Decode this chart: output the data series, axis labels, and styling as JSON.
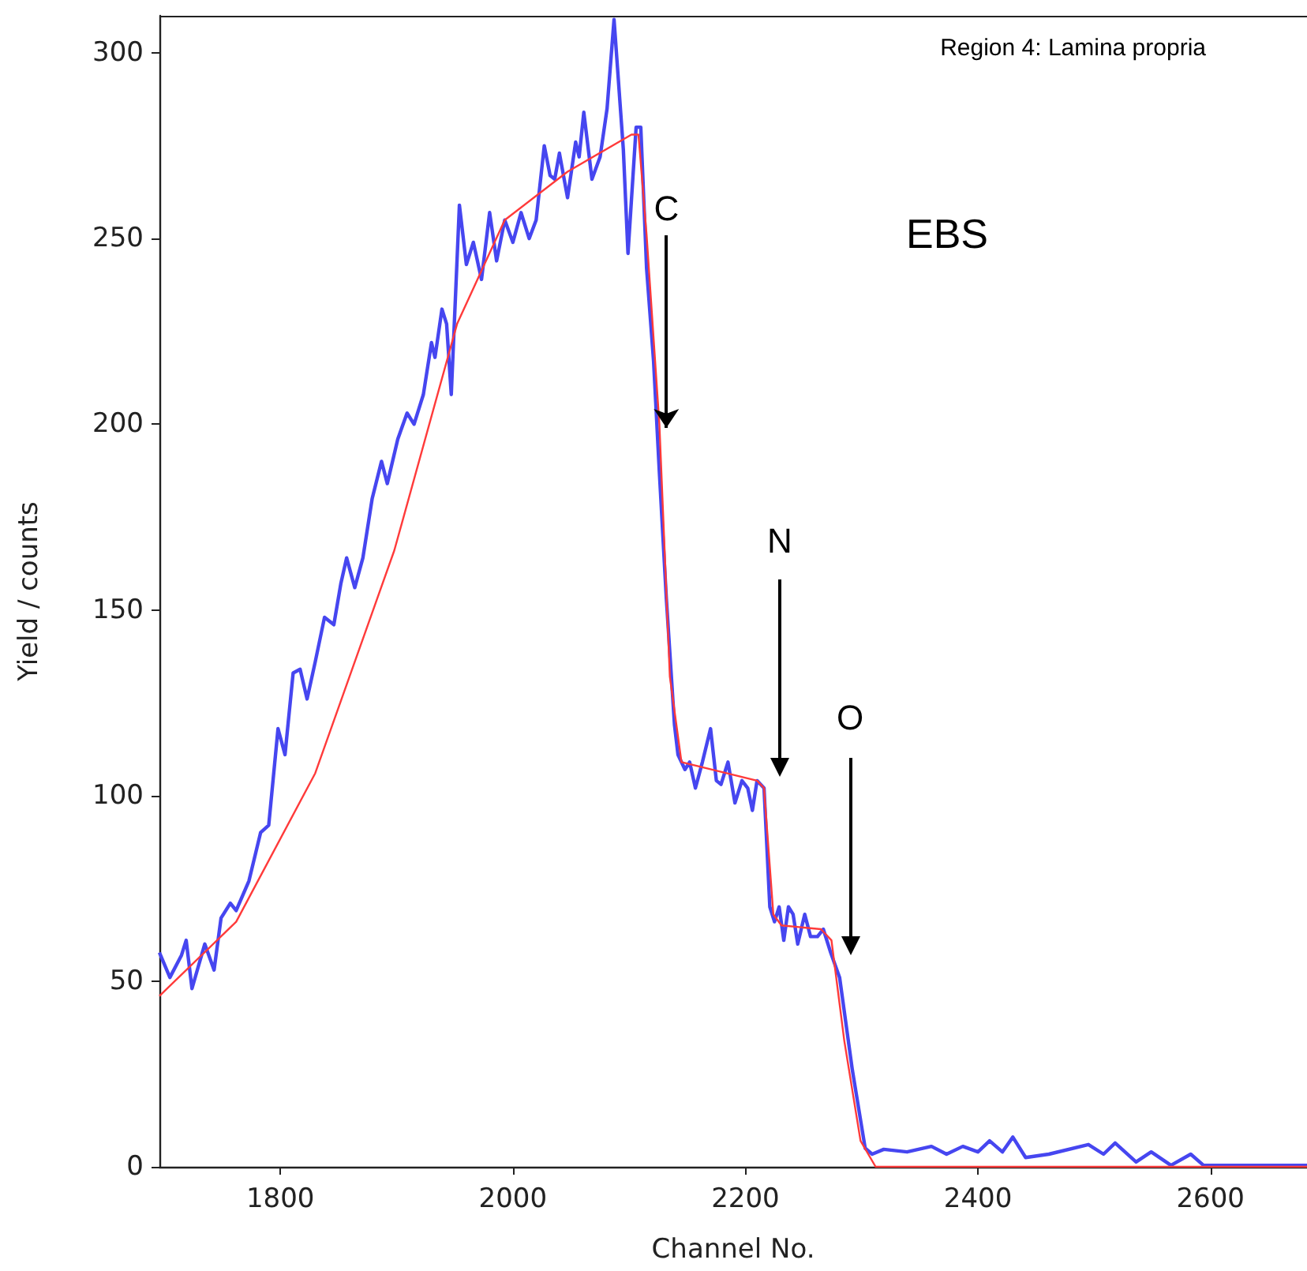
{
  "chart_data": {
    "type": "line",
    "xlabel": "Channel No.",
    "ylabel": "Yield / counts",
    "xlim": [
      1696,
      2683
    ],
    "ylim": [
      0,
      310
    ],
    "xticks": [
      1800,
      2000,
      2200,
      2400,
      2600
    ],
    "yticks": [
      0,
      50,
      100,
      150,
      200,
      250,
      300
    ],
    "grid": false,
    "marker": "none",
    "line_style": "solid",
    "annotations": [
      "Region 4: Lamina propria",
      "EBS",
      {
        "text": "C",
        "x": 2132,
        "y": 199
      },
      "N",
      "O"
    ],
    "series": [
      {
        "color": "#4646f0",
        "x": [
          1696,
          1705,
          1715,
          1719,
          1724,
          1735,
          1743,
          1749,
          1757,
          1762,
          1773,
          1783,
          1790,
          1798,
          1804,
          1811,
          1817,
          1823,
          1830,
          1838,
          1846,
          1852,
          1857,
          1864,
          1871,
          1879,
          1887,
          1892,
          1901,
          1909,
          1915,
          1923,
          1930,
          1933,
          1939,
          1943,
          1947,
          1954,
          1960,
          1966,
          1973,
          1980,
          1986,
          1993,
          2000,
          2007,
          2014,
          2020,
          2027,
          2032,
          2036,
          2040,
          2047,
          2054,
          2057,
          2061,
          2068,
          2075,
          2081,
          2087,
          2095,
          2099,
          2106,
          2110,
          2115,
          2121,
          2126,
          2132,
          2139,
          2142,
          2148,
          2152,
          2157,
          2163,
          2170,
          2175,
          2179,
          2185,
          2191,
          2197,
          2202,
          2206,
          2210,
          2216,
          2221,
          2225,
          2229,
          2233,
          2237,
          2241,
          2245,
          2251,
          2256,
          2262,
          2267,
          2273,
          2281,
          2292,
          2303,
          2309,
          2319,
          2339,
          2360,
          2373,
          2387,
          2400,
          2410,
          2421,
          2430,
          2441,
          2461,
          2495,
          2508,
          2518,
          2536,
          2549,
          2566,
          2583,
          2594,
          2617,
          2683
        ],
        "values": [
          57.7,
          51,
          57,
          61,
          48,
          60,
          53,
          67,
          71,
          69,
          77,
          90,
          92,
          118,
          111,
          133,
          134,
          126,
          136,
          148,
          146,
          157,
          164,
          156,
          164,
          180,
          190,
          184,
          196,
          203,
          200,
          208,
          222,
          218,
          231,
          227,
          208,
          259,
          243,
          249,
          239,
          257,
          244,
          255,
          249,
          257,
          250,
          255,
          275,
          267,
          266,
          273,
          261,
          276,
          272,
          284,
          266,
          272,
          285,
          309,
          274,
          246,
          280,
          280,
          242,
          217,
          187,
          153,
          119,
          111,
          107,
          109,
          102,
          109,
          118,
          104,
          103,
          109,
          98,
          104,
          102,
          96,
          104,
          102,
          70,
          66,
          70,
          61,
          70,
          68,
          60,
          68,
          62,
          62,
          64,
          58,
          51,
          26,
          5,
          3.4,
          4.7,
          4,
          5.5,
          3.4,
          5.5,
          4,
          7,
          4,
          8,
          2.5,
          3.4,
          6,
          3.4,
          6.4,
          1.3,
          4,
          0.4,
          3.4,
          0.4,
          0.4,
          0.4
        ]
      },
      {
        "color": "#ff3a3a",
        "x": [
          1696,
          1762,
          1830,
          1898,
          1952,
          1993,
          2047,
          2102,
          2108,
          2115,
          2126,
          2135,
          2145,
          2210,
          2216,
          2224,
          2231,
          2265,
          2274,
          2285,
          2299,
          2312,
          2683
        ],
        "values": [
          46,
          66,
          106,
          166,
          227,
          255,
          268,
          278,
          278,
          251,
          200,
          132,
          109,
          104,
          102,
          68,
          65,
          64,
          61,
          34,
          7,
          0,
          0
        ]
      }
    ]
  }
}
